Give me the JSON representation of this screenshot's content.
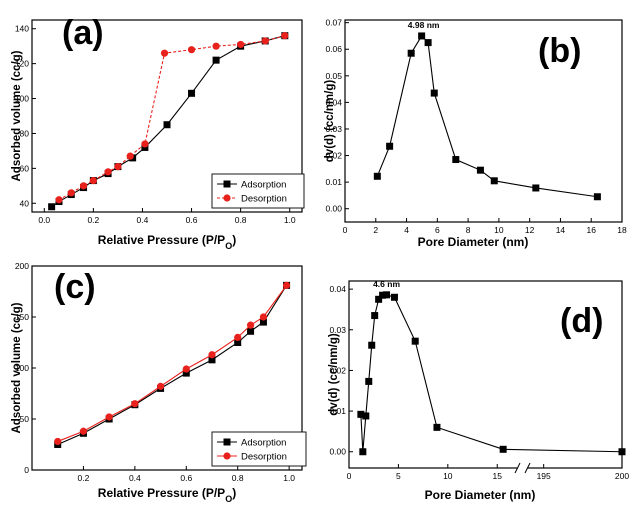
{
  "chart_data": [
    {
      "panel_label": "(a)",
      "type": "line",
      "xlabel": "Relative Pressure (P/P",
      "xlabel_sub": "O",
      "xlabel_close": ")",
      "ylabel": "Adsorbed volume (cc/g)",
      "xlim": [
        -0.05,
        1.05
      ],
      "ylim": [
        35,
        145
      ],
      "xticks": [
        0.0,
        0.2,
        0.4,
        0.6,
        0.8,
        1.0
      ],
      "xtick_labels": [
        "0.0",
        "0.2",
        "0.4",
        "0.6",
        "0.8",
        "1.0"
      ],
      "yticks": [
        40,
        60,
        80,
        100,
        120,
        140
      ],
      "ytick_labels": [
        "40",
        "60",
        "80",
        "100",
        "120",
        "140"
      ],
      "legend_position": "bottom-right",
      "series": [
        {
          "name": "Adsorption",
          "color": "#000000",
          "marker": "square",
          "line_style": "solid",
          "x": [
            0.03,
            0.06,
            0.11,
            0.16,
            0.2,
            0.26,
            0.3,
            0.36,
            0.41,
            0.5,
            0.6,
            0.7,
            0.8,
            0.9,
            0.98
          ],
          "y": [
            38,
            41,
            45,
            49,
            53,
            57,
            61,
            66,
            72,
            85,
            103,
            122,
            130,
            133,
            136
          ]
        },
        {
          "name": "Desorption",
          "color": "#e8211c",
          "marker": "circle",
          "line_style": "dashed",
          "x": [
            0.98,
            0.9,
            0.8,
            0.7,
            0.6,
            0.49,
            0.41,
            0.35,
            0.3,
            0.26,
            0.2,
            0.16,
            0.11,
            0.06
          ],
          "y": [
            136,
            133,
            131,
            130,
            128,
            126,
            74,
            67,
            61,
            58,
            53,
            50,
            46,
            42
          ]
        }
      ]
    },
    {
      "panel_label": "(b)",
      "type": "line",
      "xlabel": "Pore Diameter (nm)",
      "ylabel": "dv(d) (cc/nm/g)",
      "xlim": [
        0,
        18
      ],
      "ylim": [
        -0.005,
        0.071
      ],
      "xticks": [
        0,
        2,
        4,
        6,
        8,
        10,
        12,
        14,
        16,
        18
      ],
      "xtick_labels": [
        "0",
        "2",
        "4",
        "6",
        "8",
        "10",
        "12",
        "14",
        "16",
        "18"
      ],
      "yticks": [
        0.0,
        0.01,
        0.02,
        0.03,
        0.04,
        0.05,
        0.06,
        0.07
      ],
      "ytick_labels": [
        "0.00",
        "0.01",
        "0.02",
        "0.03",
        "0.04",
        "0.05",
        "0.06",
        "0.07"
      ],
      "annotation": "4.98 nm",
      "series": [
        {
          "color": "#000000",
          "marker": "square",
          "x": [
            2.1,
            2.9,
            4.3,
            4.98,
            5.4,
            5.8,
            7.2,
            8.8,
            9.7,
            12.4,
            16.4
          ],
          "y": [
            0.0122,
            0.0235,
            0.0585,
            0.065,
            0.0625,
            0.0435,
            0.0185,
            0.0145,
            0.0105,
            0.0078,
            0.0045
          ]
        }
      ]
    },
    {
      "panel_label": "(c)",
      "type": "line",
      "xlabel": "Relative Pressure (P/P",
      "xlabel_sub": "O",
      "xlabel_close": ")",
      "ylabel": "Adsorbed volume (cc/g)",
      "xlim": [
        0.0,
        1.05
      ],
      "ylim": [
        0,
        200
      ],
      "xticks": [
        0.2,
        0.4,
        0.6,
        0.8,
        1.0
      ],
      "xtick_labels": [
        "0.2",
        "0.4",
        "0.6",
        "0.8",
        "1.0"
      ],
      "yticks": [
        0,
        50,
        100,
        150,
        200
      ],
      "ytick_labels": [
        "0",
        "50",
        "100",
        "150",
        "200"
      ],
      "legend_position": "bottom-right",
      "series": [
        {
          "name": "Adsorption",
          "color": "#000000",
          "marker": "square",
          "x": [
            0.1,
            0.2,
            0.3,
            0.4,
            0.5,
            0.6,
            0.7,
            0.8,
            0.85,
            0.9,
            0.99
          ],
          "y": [
            25,
            36,
            50,
            64,
            80,
            95,
            108,
            125,
            136,
            145,
            181
          ]
        },
        {
          "name": "Desorption",
          "color": "#e8211c",
          "marker": "circle",
          "x": [
            0.99,
            0.9,
            0.85,
            0.8,
            0.7,
            0.6,
            0.5,
            0.4,
            0.3,
            0.2,
            0.1
          ],
          "y": [
            181,
            150,
            142,
            130,
            113,
            99,
            82,
            65,
            52,
            38,
            28
          ]
        }
      ]
    },
    {
      "panel_label": "(d)",
      "type": "line",
      "xlabel": "Pore Diameter (nm)",
      "ylabel": "dv(d) (cc/nm/g)",
      "xlim": [
        0,
        200
      ],
      "x_axis_break": [
        17,
        194
      ],
      "ylim": [
        -0.004,
        0.042
      ],
      "xticks": [
        0,
        5,
        10,
        15,
        195,
        200
      ],
      "xtick_labels": [
        "0",
        "5",
        "10",
        "15",
        "195",
        "200"
      ],
      "yticks": [
        0.0,
        0.01,
        0.02,
        0.03,
        0.04
      ],
      "ytick_labels": [
        "0.00",
        "0.01",
        "0.02",
        "0.03",
        "0.04"
      ],
      "annotation": "4.6 nm",
      "series": [
        {
          "color": "#000000",
          "marker": "square",
          "x": [
            1.2,
            1.4,
            1.7,
            2.0,
            2.3,
            2.6,
            3.0,
            3.4,
            3.8,
            4.6,
            6.7,
            8.9,
            15.6,
            200
          ],
          "y": [
            0.0092,
            0.0,
            0.0088,
            0.0173,
            0.0262,
            0.0335,
            0.0375,
            0.0385,
            0.0386,
            0.038,
            0.0272,
            0.006,
            0.0006,
            0.0
          ]
        }
      ]
    }
  ]
}
